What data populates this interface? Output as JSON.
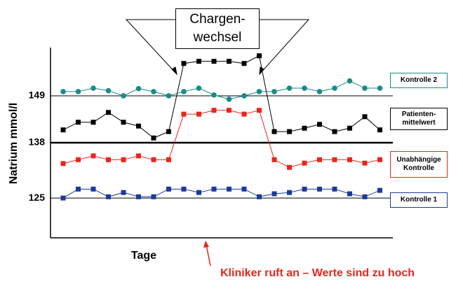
{
  "chart_data": {
    "type": "line",
    "ylabel": "Natrium mmol/l",
    "xlabel": "Tage",
    "annotations": [
      "Chargen-\nwechsel",
      "Kliniker ruft an – Werte sind zu hoch"
    ],
    "ylim": [
      115,
      160
    ],
    "yticks": [
      125,
      138,
      149
    ],
    "grid": true,
    "series": [
      {
        "name": "Kontrolle 2",
        "color": "#1a8a8a",
        "marker": "circle",
        "values": [
          150.0,
          150.0,
          150.8,
          150.2,
          149.0,
          150.7,
          150.0,
          149.0,
          150.0,
          150.8,
          149.2,
          148.2,
          149.0,
          150.0,
          150.0,
          150.8,
          150.8,
          150.0,
          150.8,
          152.5,
          150.8,
          150.8
        ]
      },
      {
        "name": "Patienten-\nmittelwert",
        "color": "#000000",
        "marker": "square",
        "values": [
          141.0,
          142.8,
          142.8,
          145.1,
          142.8,
          141.9,
          139.1,
          140.6,
          156.6,
          157.1,
          157.1,
          157.1,
          156.6,
          158.4,
          140.6,
          140.6,
          141.4,
          142.3,
          140.6,
          141.4,
          144.1,
          141.0
        ]
      },
      {
        "name": "Unabhängige\nKontrolle",
        "color": "#e8261c",
        "marker": "square",
        "values": [
          133.1,
          134.0,
          134.9,
          134.0,
          134.0,
          134.9,
          134.0,
          134.0,
          144.7,
          144.7,
          145.6,
          145.6,
          144.7,
          145.6,
          134.0,
          132.2,
          133.2,
          134.0,
          134.0,
          134.0,
          133.2,
          134.0
        ]
      },
      {
        "name": "Kontrolle 1",
        "color": "#1a3a9a",
        "marker": "square",
        "values": [
          125.0,
          127.1,
          127.1,
          125.3,
          126.3,
          125.3,
          125.3,
          127.1,
          127.1,
          126.3,
          127.1,
          127.1,
          127.1,
          125.3,
          126.0,
          126.3,
          127.1,
          127.1,
          127.1,
          126.0,
          125.3,
          126.8
        ]
      }
    ]
  }
}
